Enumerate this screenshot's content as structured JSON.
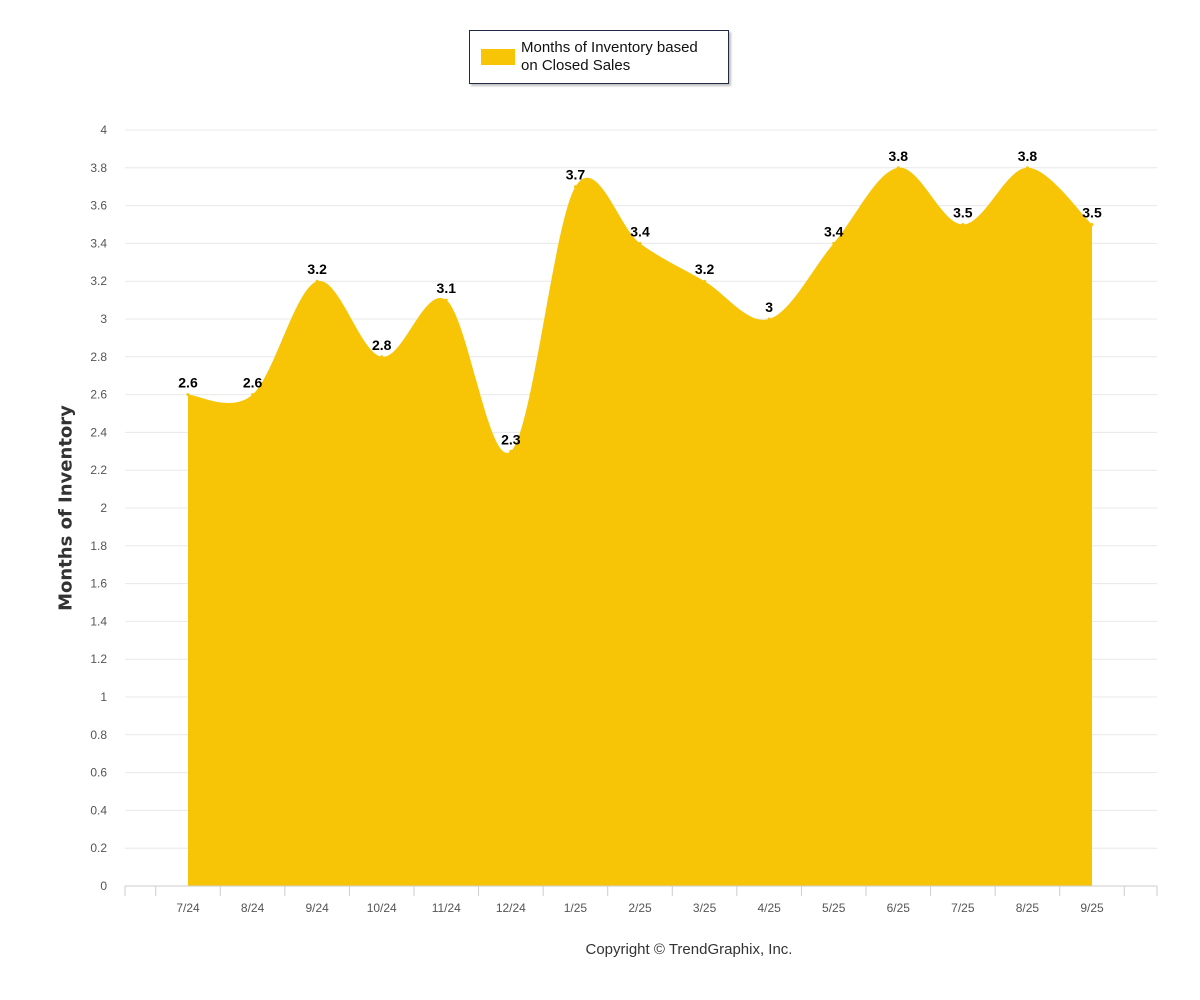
{
  "chart_data": {
    "type": "area",
    "categories": [
      "7/24",
      "8/24",
      "9/24",
      "10/24",
      "11/24",
      "12/24",
      "1/25",
      "2/25",
      "3/25",
      "4/25",
      "5/25",
      "6/25",
      "7/25",
      "8/25",
      "9/25"
    ],
    "series": [
      {
        "name": "Months of Inventory based on Closed Sales",
        "values": [
          2.6,
          2.6,
          3.2,
          2.8,
          3.1,
          2.3,
          3.7,
          3.4,
          3.2,
          3.0,
          3.4,
          3.8,
          3.5,
          3.8,
          3.5
        ],
        "color": "#f7c406"
      }
    ],
    "data_labels": [
      "2.6",
      "2.6",
      "3.2",
      "2.8",
      "3.1",
      "2.3",
      "3.7",
      "3.4",
      "3.2",
      "3",
      "3.4",
      "3.8",
      "3.5",
      "3.8",
      "3.5"
    ],
    "y_ticks": [
      "0",
      "0.2",
      "0.4",
      "0.6",
      "0.8",
      "1",
      "1.2",
      "1.4",
      "1.6",
      "1.8",
      "2",
      "2.2",
      "2.4",
      "2.6",
      "2.8",
      "3",
      "3.2",
      "3.4",
      "3.6",
      "3.8",
      "4"
    ],
    "ylim": [
      0,
      4
    ],
    "ylabel": "Months of Inventory",
    "xlabel": "",
    "grid": true,
    "legend_position": "top-center"
  },
  "legend": {
    "label_line1": "Months of Inventory based",
    "label_line2": "on Closed Sales",
    "color": "#f7c406"
  },
  "footer": {
    "copyright": "Copyright © TrendGraphix, Inc."
  },
  "colors": {
    "grid": "#e8e8e8",
    "axis": "#cccccc",
    "tick_text": "#555555",
    "data_label": "#000000"
  }
}
